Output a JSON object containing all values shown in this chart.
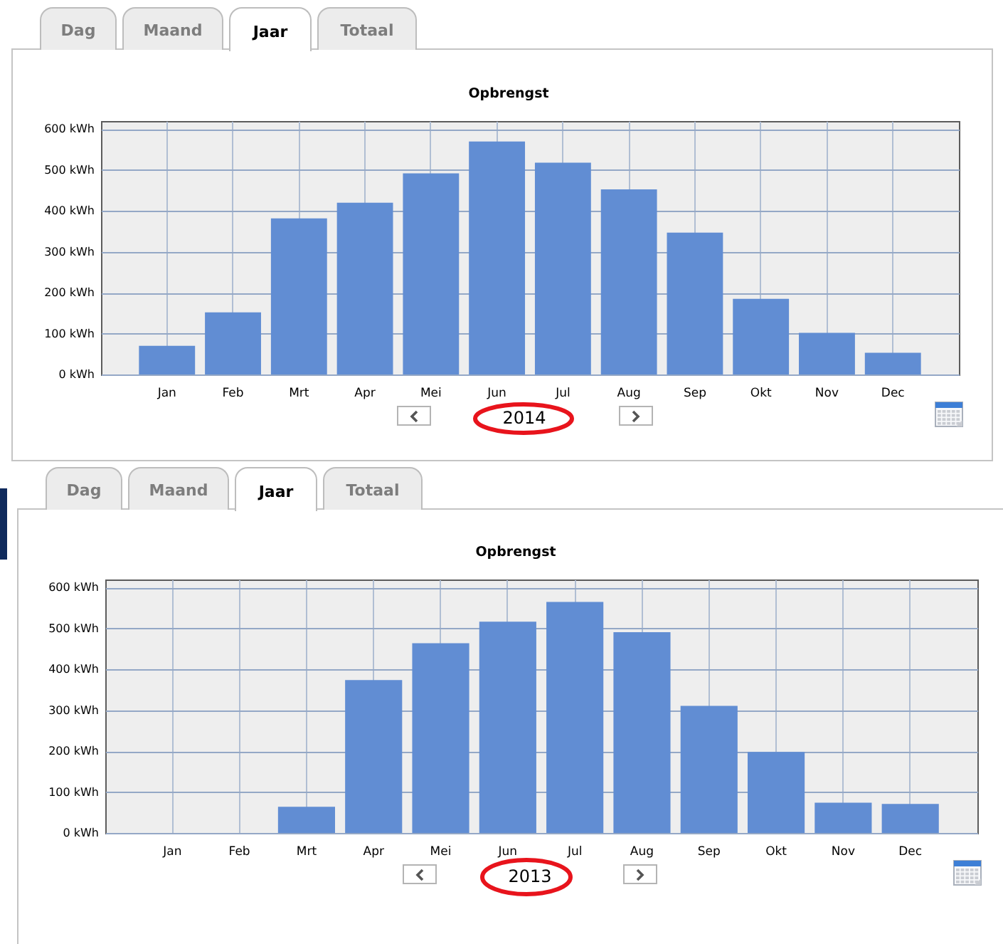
{
  "chart_data": [
    {
      "type": "bar",
      "title": "Opbrengst",
      "xlabel": "2014",
      "annotations": [
        "Dag",
        "Maand",
        "Jaar",
        "Totaal"
      ],
      "categories": [
        "Jan",
        "Feb",
        "Mrt",
        "Apr",
        "Mei",
        "Jun",
        "Jul",
        "Aug",
        "Sep",
        "Okt",
        "Nov",
        "Dec"
      ],
      "values": [
        70,
        152,
        382,
        420,
        492,
        570,
        518,
        453,
        347,
        185,
        102,
        53
      ],
      "color": "#618dd3",
      "ylim": [
        0,
        620
      ],
      "yticks": [
        {
          "value": 0,
          "label": "0 kWh"
        },
        {
          "value": 100,
          "label": "100 kWh"
        },
        {
          "value": 200,
          "label": "200 kWh"
        },
        {
          "value": 300,
          "label": "300 kWh"
        },
        {
          "value": 400,
          "label": "400 kWh"
        },
        {
          "value": 500,
          "label": "500 kWh"
        },
        {
          "value": 600,
          "label": "600 kWh"
        }
      ],
      "grid": true
    },
    {
      "type": "bar",
      "title": "Opbrengst",
      "xlabel": "2013",
      "annotations": [
        "Dag",
        "Maand",
        "Jaar",
        "Totaal"
      ],
      "categories": [
        "Jan",
        "Feb",
        "Mrt",
        "Apr",
        "Mei",
        "Jun",
        "Jul",
        "Aug",
        "Sep",
        "Okt",
        "Nov",
        "Dec"
      ],
      "values": [
        null,
        null,
        64,
        374,
        464,
        517,
        565,
        491,
        311,
        198,
        74,
        71
      ],
      "color": "#618dd3",
      "ylim": [
        0,
        620
      ],
      "yticks": [
        {
          "value": 0,
          "label": "0 kWh"
        },
        {
          "value": 100,
          "label": "100 kWh"
        },
        {
          "value": 200,
          "label": "200 kWh"
        },
        {
          "value": 300,
          "label": "300 kWh"
        },
        {
          "value": 400,
          "label": "400 kWh"
        },
        {
          "value": 500,
          "label": "500 kWh"
        },
        {
          "value": 600,
          "label": "600 kWh"
        }
      ],
      "grid": true
    }
  ]
}
